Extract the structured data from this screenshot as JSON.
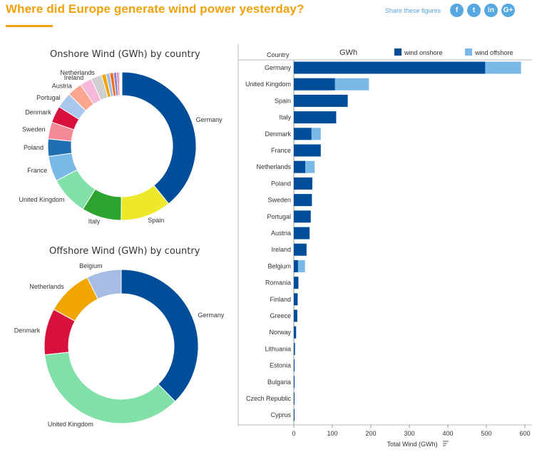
{
  "header": {
    "title": "Where did Europe generate wind power yesterday?",
    "share_label": "Share these figures",
    "share_buttons": [
      {
        "icon": "facebook-icon",
        "glyph": "f"
      },
      {
        "icon": "twitter-icon",
        "glyph": "t"
      },
      {
        "icon": "linkedin-icon",
        "glyph": "in"
      },
      {
        "icon": "googleplus-icon",
        "glyph": "G+"
      }
    ],
    "accent_color": "#f0a10b"
  },
  "chart_data": [
    {
      "type": "pie",
      "title": "Onshore Wind (GWh) by country",
      "categories": [
        "Germany",
        "Spain",
        "Italy",
        "United Kingdom",
        "France",
        "Poland",
        "Sweden",
        "Denmark",
        "Portugal",
        "Austria",
        "Ireland",
        "Netherlands",
        "Romania",
        "Belgium",
        "Finland",
        "Greece",
        "Norway",
        "Lithuania",
        "Estonia",
        "Bulgaria",
        "Czech Republic",
        "Cyprus"
      ],
      "values": [
        497,
        140,
        110,
        107,
        70,
        48,
        47,
        46,
        44,
        41,
        33,
        30,
        12,
        11,
        10,
        9,
        6,
        3,
        2,
        2,
        1,
        0.5
      ],
      "colors": [
        "#004d99",
        "#ede92a",
        "#2fa32f",
        "#80e0a8",
        "#7ab8e8",
        "#1f6fb2",
        "#f58a97",
        "#d7103e",
        "#aac8ee",
        "#fca68f",
        "#f5b8d8",
        "#cfcfcf",
        "#f0a500",
        "#a6bce3",
        "#f26a1b",
        "#8888cc",
        "#ff6b9a",
        "#999999",
        "#66c2a5",
        "#dddddd",
        "#b3b3b3",
        "#ffe08a"
      ],
      "legend": "labels-outside"
    },
    {
      "type": "pie",
      "title": "Offshore Wind (GWh) by country",
      "categories": [
        "Germany",
        "United Kingdom",
        "Denmark",
        "Netherlands",
        "Belgium"
      ],
      "values": [
        93,
        88,
        24,
        24,
        18
      ],
      "colors": [
        "#004d99",
        "#80e0a8",
        "#d7103e",
        "#f0a500",
        "#a6bce3"
      ],
      "legend": "labels-outside"
    },
    {
      "type": "bar",
      "orientation": "horizontal",
      "stacked": true,
      "title": "GWh",
      "category_axis_label": "Country",
      "xlabel": "Total Wind (GWh)",
      "xlim": [
        0,
        600
      ],
      "xticks": [
        0,
        100,
        200,
        300,
        400,
        500,
        600
      ],
      "categories": [
        "Germany",
        "United Kingdom",
        "Spain",
        "Italy",
        "Denmark",
        "France",
        "Netherlands",
        "Poland",
        "Sweden",
        "Portugal",
        "Austria",
        "Ireland",
        "Belgium",
        "Romania",
        "Finland",
        "Greece",
        "Norway",
        "Lithuania",
        "Estonia",
        "Bulgaria",
        "Czech Republic",
        "Cyprus"
      ],
      "series": [
        {
          "name": "wind onshore",
          "color": "#004d99",
          "values": [
            497,
            107,
            140,
            110,
            46,
            70,
            30,
            48,
            47,
            44,
            41,
            33,
            11,
            12,
            10,
            9,
            6,
            3,
            2,
            2,
            1,
            0.5
          ]
        },
        {
          "name": "wind offshore",
          "color": "#7ab8e8",
          "values": [
            93,
            88,
            0,
            0,
            24,
            0,
            24,
            0,
            0,
            0,
            0,
            0,
            18,
            0,
            0,
            0,
            0,
            0,
            0,
            0,
            0,
            0
          ]
        }
      ],
      "legend": "top-right",
      "grid": false
    }
  ]
}
